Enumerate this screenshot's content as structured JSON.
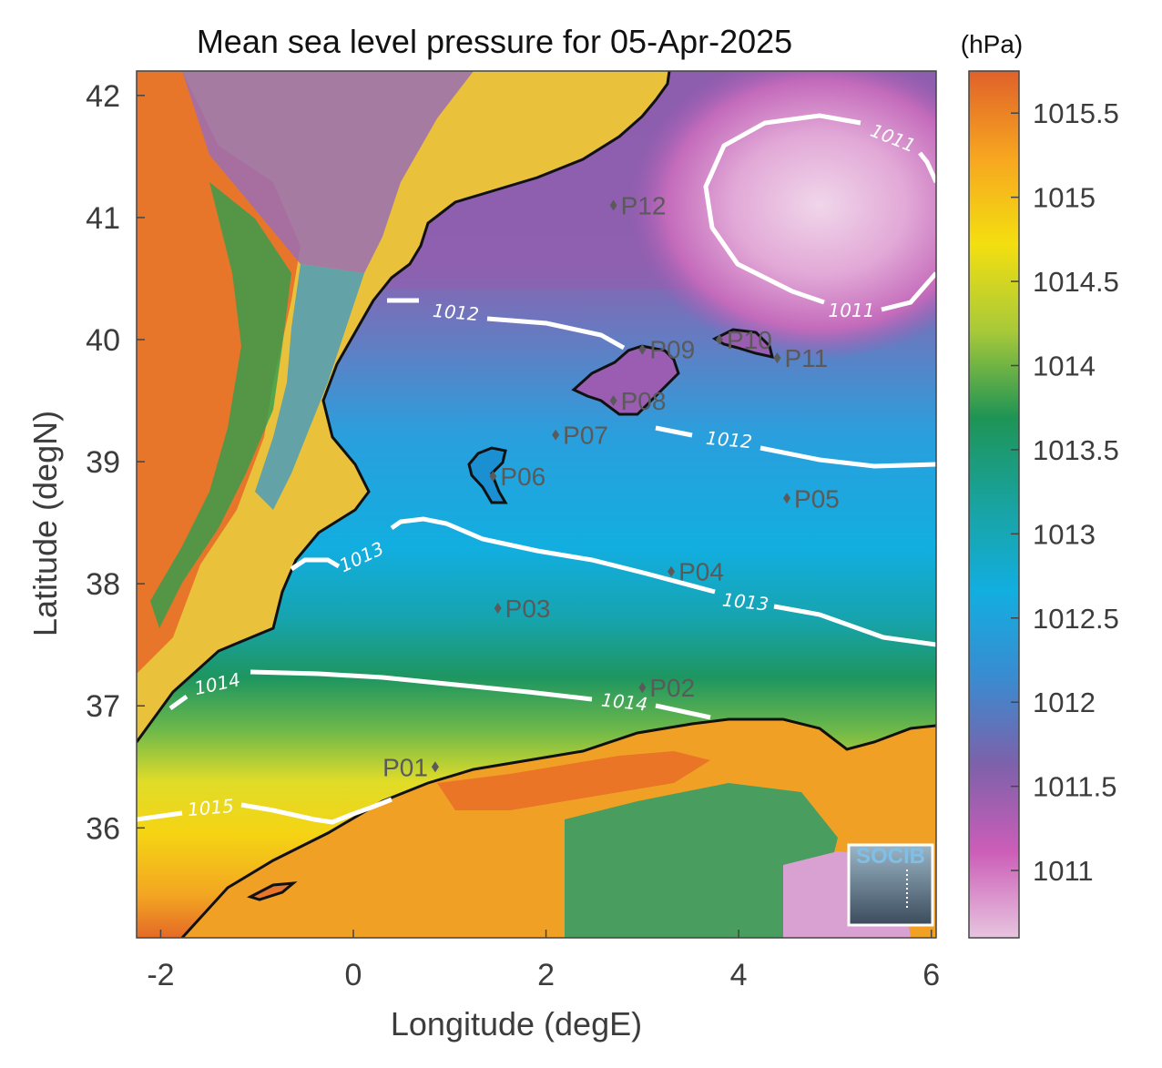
{
  "title": "Mean sea level pressure for 05-Apr-2025",
  "colorbar": {
    "unit": "(hPa)",
    "ticks": [
      "1015.5",
      "1015",
      "1014.5",
      "1014",
      "1013.5",
      "1013",
      "1012.5",
      "1012",
      "1011.5",
      "1011"
    ],
    "range": [
      1010.6,
      1015.75
    ],
    "colors": [
      "#e7c5df",
      "#cc5db8",
      "#7d61aa",
      "#3a8bd0",
      "#12aee0",
      "#19a3a0",
      "#1e9455",
      "#a8c939",
      "#f3df10",
      "#f7a620",
      "#e0612a"
    ]
  },
  "axes": {
    "xlabel": "Longitude (degE)",
    "ylabel": "Latitude (degN)",
    "xticks": [
      "-2",
      "0",
      "2",
      "4",
      "6"
    ],
    "yticks": [
      "42",
      "41",
      "40",
      "39",
      "38",
      "37",
      "36"
    ],
    "xlim": [
      -2.25,
      6.05
    ],
    "ylim": [
      35.1,
      42.2
    ]
  },
  "contours": {
    "c1015": "1015",
    "c1014a": "1014",
    "c1014b": "1014",
    "c1013a": "1013",
    "c1013b": "1013",
    "c1012a": "1012",
    "c1012b": "1012",
    "c1011a": "1011",
    "c1011b": "1011"
  },
  "stations": [
    {
      "id": "P01",
      "lon": 0.85,
      "lat": 36.5
    },
    {
      "id": "P02",
      "lon": 3.0,
      "lat": 37.15
    },
    {
      "id": "P03",
      "lon": 1.5,
      "lat": 37.8
    },
    {
      "id": "P04",
      "lon": 3.3,
      "lat": 38.1
    },
    {
      "id": "P05",
      "lon": 4.5,
      "lat": 38.7
    },
    {
      "id": "P06",
      "lon": 1.45,
      "lat": 38.88
    },
    {
      "id": "P07",
      "lon": 2.1,
      "lat": 39.22
    },
    {
      "id": "P08",
      "lon": 2.7,
      "lat": 39.5
    },
    {
      "id": "P09",
      "lon": 3.0,
      "lat": 39.92
    },
    {
      "id": "P10",
      "lon": 3.8,
      "lat": 40.0
    },
    {
      "id": "P11",
      "lon": 4.4,
      "lat": 39.85
    },
    {
      "id": "P12",
      "lon": 2.7,
      "lat": 41.1
    }
  ],
  "logo": "SOCIB"
}
